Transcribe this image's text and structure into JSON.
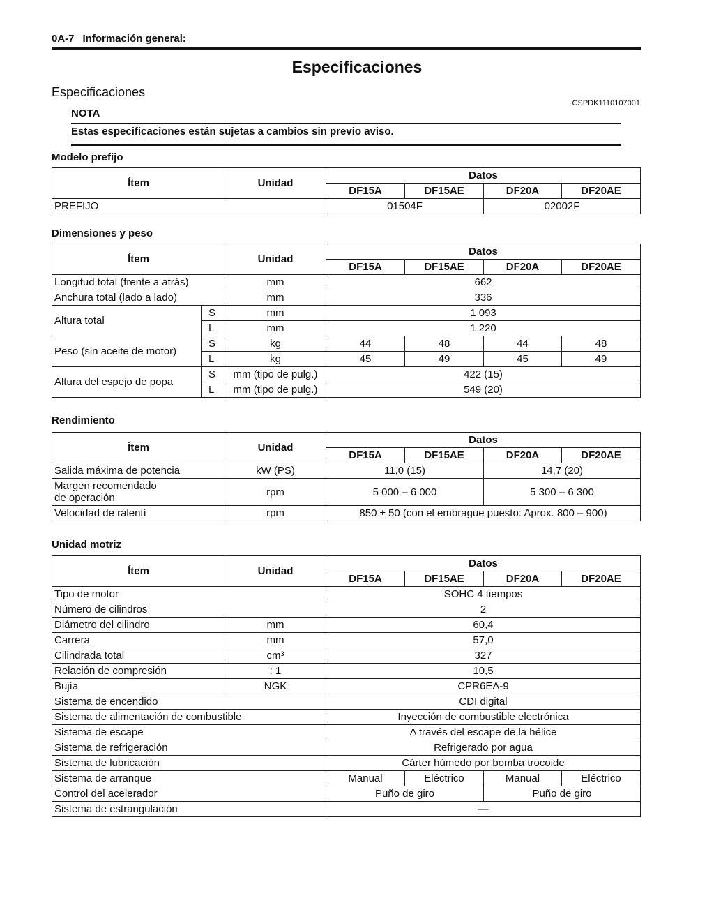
{
  "header": {
    "page": "0A-7",
    "section": "Información general:"
  },
  "title": "Especificaciones",
  "subtitle": "Especificaciones",
  "doc_code": "CSPDK1110107001",
  "note": {
    "label": "NOTA",
    "text": "Estas especificaciones están sujetas a cambios sin previo aviso."
  },
  "columns": {
    "item": "Ítem",
    "unit": "Unidad",
    "data": "Datos",
    "models": [
      "DF15A",
      "DF15AE",
      "DF20A",
      "DF20AE"
    ]
  },
  "tables": [
    {
      "title": "Modelo prefijo",
      "rows": [
        {
          "item": "PREFIJO",
          "unit": null,
          "values": [
            "01504F",
            "02002F"
          ]
        }
      ]
    },
    {
      "title": "Dimensiones y peso",
      "rows": [
        {
          "item": "Longitud total (frente a atrás)",
          "unit": "mm",
          "values": [
            "662"
          ]
        },
        {
          "item": "Anchura total (lado a lado)",
          "unit": "mm",
          "values": [
            "336"
          ]
        },
        {
          "item": "Altura total",
          "subrows": [
            {
              "sub": "S",
              "unit": "mm",
              "values": [
                "1 093"
              ]
            },
            {
              "sub": "L",
              "unit": "mm",
              "values": [
                "1 220"
              ]
            }
          ]
        },
        {
          "item": "Peso (sin aceite de motor)",
          "subrows": [
            {
              "sub": "S",
              "unit": "kg",
              "values": [
                "44",
                "48",
                "44",
                "48"
              ]
            },
            {
              "sub": "L",
              "unit": "kg",
              "values": [
                "45",
                "49",
                "45",
                "49"
              ]
            }
          ]
        },
        {
          "item": "Altura del espejo de popa",
          "subrows": [
            {
              "sub": "S",
              "unit": "mm (tipo de pulg.)",
              "values": [
                "422 (15)"
              ]
            },
            {
              "sub": "L",
              "unit": "mm (tipo de pulg.)",
              "values": [
                "549 (20)"
              ]
            }
          ]
        }
      ]
    },
    {
      "title": "Rendimiento",
      "rows": [
        {
          "item": "Salida máxima de potencia",
          "unit": "kW (PS)",
          "values": [
            "11,0 (15)",
            "14,7 (20)"
          ]
        },
        {
          "item": "Margen recomendado de operación",
          "unit": "rpm",
          "values": [
            "5 000 – 6 000",
            "5 300 – 6 300"
          ],
          "tall": true
        },
        {
          "item": "Velocidad de ralentí",
          "unit": "rpm",
          "values": [
            "850 ± 50 (con el embrague puesto: Aprox. 800 – 900)"
          ]
        }
      ]
    },
    {
      "title": "Unidad motriz",
      "rows": [
        {
          "item": "Tipo de motor",
          "unit": null,
          "values": [
            "SOHC 4 tiempos"
          ]
        },
        {
          "item": "Número de cilindros",
          "unit": null,
          "values": [
            "2"
          ]
        },
        {
          "item": "Diámetro del cilindro",
          "unit": "mm",
          "values": [
            "60,4"
          ]
        },
        {
          "item": "Carrera",
          "unit": "mm",
          "values": [
            "57,0"
          ]
        },
        {
          "item": "Cilindrada total",
          "unit": "cm³",
          "values": [
            "327"
          ]
        },
        {
          "item": "Relación de compresión",
          "unit": ": 1",
          "values": [
            "10,5"
          ]
        },
        {
          "item": "Bujía",
          "unit": "NGK",
          "values": [
            "CPR6EA-9"
          ]
        },
        {
          "item": "Sistema de encendido",
          "unit": null,
          "values": [
            "CDI digital"
          ]
        },
        {
          "item": "Sistema de alimentación de combustible",
          "unit": null,
          "values": [
            "Inyección de combustible electrónica"
          ]
        },
        {
          "item": "Sistema de escape",
          "unit": null,
          "values": [
            "A través del escape de la hélice"
          ]
        },
        {
          "item": "Sistema de refrigeración",
          "unit": null,
          "values": [
            "Refrigerado por agua"
          ]
        },
        {
          "item": "Sistema de lubricación",
          "unit": null,
          "values": [
            "Cárter húmedo por bomba trocoide"
          ]
        },
        {
          "item": "Sistema de arranque",
          "unit": null,
          "values": [
            "Manual",
            "Eléctrico",
            "Manual",
            "Eléctrico"
          ]
        },
        {
          "item": "Control del acelerador",
          "unit": null,
          "values": [
            "Puño de giro",
            "Puño de giro"
          ]
        },
        {
          "item": "Sistema de estrangulación",
          "unit": null,
          "values": [
            "—"
          ]
        }
      ]
    }
  ]
}
